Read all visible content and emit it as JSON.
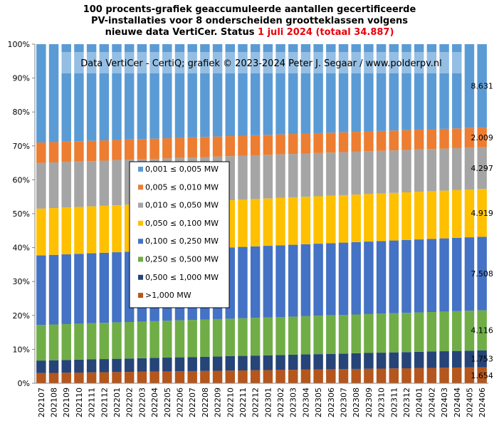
{
  "chart_data": {
    "type": "bar",
    "stacked": true,
    "normalized": true,
    "title_lines": [
      "100 procents-grafiek geaccumuleerde aantallen gecertificeerde",
      "PV-installaties voor 8 onderscheiden grootteklassen volgens"
    ],
    "title_line3_prefix": "nieuwe data VertiCer. Status",
    "title_line3_highlight": "1 juli 2024 (totaal 34.887)",
    "highlight_color": "#e8000b",
    "watermark": "Data VertiCer - CertiQ; grafiek © 2023-2024  Peter J. Segaar / www.polderpv.nl",
    "y_ticks": [
      "0%",
      "10%",
      "20%",
      "30%",
      "40%",
      "50%",
      "60%",
      "70%",
      "80%",
      "90%",
      "100%"
    ],
    "ylim": [
      0,
      100
    ],
    "grid": false,
    "legend_position": "center-left",
    "categories": [
      "202107",
      "202108",
      "202109",
      "202110",
      "202111",
      "202112",
      "202201",
      "202202",
      "202203",
      "202204",
      "202205",
      "202206",
      "202207",
      "202208",
      "202209",
      "202210",
      "202211",
      "202212",
      "202301",
      "202302",
      "202303",
      "202304",
      "202305",
      "202306",
      "202307",
      "202308",
      "202309",
      "202310",
      "202311",
      "202312",
      "202401",
      "202402",
      "202403",
      "202404",
      "202405",
      "202406"
    ],
    "series": [
      {
        "name": ">1,000 MW",
        "color": "#b5561c",
        "start": 3.0,
        "end": 4.7,
        "last_label": "1.654"
      },
      {
        "name": "0,500 ≤  1,000 MW",
        "color": "#264478",
        "start": 3.7,
        "end": 5.0,
        "last_label": "1.753"
      },
      {
        "name": "0,250 ≤  0,500 MW",
        "color": "#70ad47",
        "start": 10.5,
        "end": 11.8,
        "last_label": "4.116"
      },
      {
        "name": "0,100 ≤  0,250 MW",
        "color": "#4472c4",
        "start": 20.5,
        "end": 21.7,
        "last_label": "7.508"
      },
      {
        "name": "0,050 ≤  0,100 MW",
        "color": "#ffc000",
        "start": 13.8,
        "end": 14.1,
        "last_label": "4.919"
      },
      {
        "name": "0,010 ≤  0,050 MW",
        "color": "#a5a5a5",
        "start": 13.5,
        "end": 12.3,
        "last_label": "4.297"
      },
      {
        "name": "0,005 ≤  0,010 MW",
        "color": "#ed7d31",
        "start": 6.0,
        "end": 5.8,
        "last_label": "2.009"
      },
      {
        "name": "0,001 ≤  0,005 MW",
        "color": "#5b9bd5",
        "start": 29.0,
        "end": 24.6,
        "last_label": "8.631"
      }
    ]
  }
}
